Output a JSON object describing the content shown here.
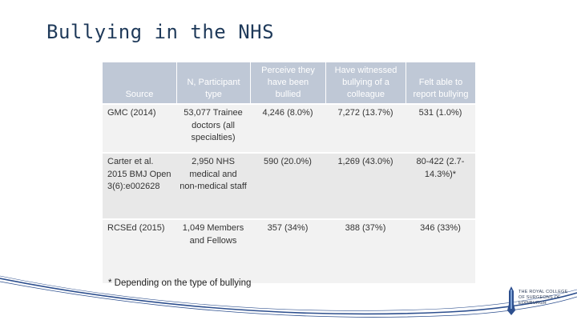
{
  "slide": {
    "title": "Bullying in the NHS"
  },
  "table": {
    "headers": [
      "Source",
      "N, Participant type",
      "Perceive they have been bullied",
      "Have witnessed bullying of a colleague",
      "Felt able to report bullying"
    ],
    "rows": [
      [
        "GMC (2014)",
        "53,077 Trainee doctors (all specialties)",
        "4,246 (8.0%)",
        "7,272 (13.7%)",
        "531 (1.0%)"
      ],
      [
        "Carter et al. 2015 BMJ Open 3(6):e002628",
        "2,950 NHS medical and non-medical staff",
        "590 (20.0%)",
        "1,269 (43.0%)",
        "80-422 (2.7-14.3%)*"
      ],
      [
        "RCSEd (2015)",
        "1,049 Members and Fellows",
        "357 (34%)",
        "388 (37%)",
        "346 (33%)"
      ]
    ]
  },
  "footnote": "* Depending on the type of bullying",
  "logo": {
    "text": "THE ROYAL COLLEGE OF SURGEONS OF EDINBURGH"
  },
  "colors": {
    "header_bg": "#bfc8d6",
    "title": "#1f3a5a",
    "wave": "#2d4f8e"
  }
}
